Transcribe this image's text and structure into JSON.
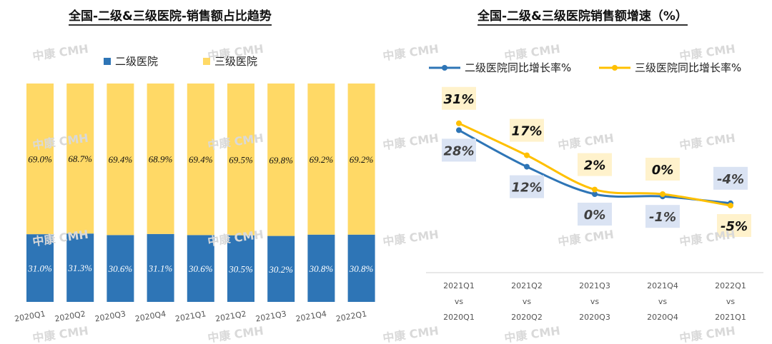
{
  "watermark": "中康 CMH",
  "chart_data": [
    {
      "type": "bar",
      "stacked": true,
      "title": "全国-二级&三级医院-销售额占比趋势",
      "categories": [
        "2020Q1",
        "2020Q2",
        "2020Q3",
        "2020Q4",
        "2021Q1",
        "2021Q2",
        "2021Q3",
        "2021Q4",
        "2022Q1"
      ],
      "series": [
        {
          "name": "二级医院",
          "color": "#2E75B6",
          "values": [
            31.0,
            31.3,
            30.6,
            31.1,
            30.6,
            30.5,
            30.2,
            30.8,
            30.8
          ],
          "labels": [
            "31.0%",
            "31.3%",
            "30.6%",
            "31.1%",
            "30.6%",
            "30.5%",
            "30.2%",
            "30.8%",
            "30.8%"
          ]
        },
        {
          "name": "三级医院",
          "color": "#FFD966",
          "values": [
            69.0,
            68.7,
            69.4,
            68.9,
            69.4,
            69.5,
            69.8,
            69.2,
            69.2
          ],
          "labels": [
            "69.0%",
            "68.7%",
            "69.4%",
            "68.9%",
            "69.4%",
            "69.5%",
            "69.8%",
            "69.2%",
            "69.2%"
          ]
        }
      ],
      "ylim": [
        0,
        100
      ],
      "legend": "top"
    },
    {
      "type": "line",
      "title": "全国-二级&三级医院销售额增速（%）",
      "categories": [
        [
          "2021Q1",
          "vs",
          "2020Q1"
        ],
        [
          "2021Q2",
          "vs",
          "2020Q2"
        ],
        [
          "2021Q3",
          "vs",
          "2020Q3"
        ],
        [
          "2021Q4",
          "vs",
          "2020Q4"
        ],
        [
          "2022Q1",
          "vs",
          "2021Q1"
        ]
      ],
      "series": [
        {
          "name": "二级医院同比增长率%",
          "color": "#2E75B6",
          "label_bg": "#DAE3F3",
          "values": [
            28,
            12,
            0,
            -1,
            -4
          ],
          "labels": [
            "28%",
            "12%",
            "0%",
            "-1%",
            "-4%"
          ]
        },
        {
          "name": "三级医院同比增长率%",
          "color": "#FFC000",
          "label_bg": "#FFF2CC",
          "values": [
            31,
            17,
            2,
            0,
            -5
          ],
          "labels": [
            "31%",
            "17%",
            "2%",
            "0%",
            "-5%"
          ]
        }
      ],
      "smooth": true,
      "legend": "top"
    }
  ]
}
